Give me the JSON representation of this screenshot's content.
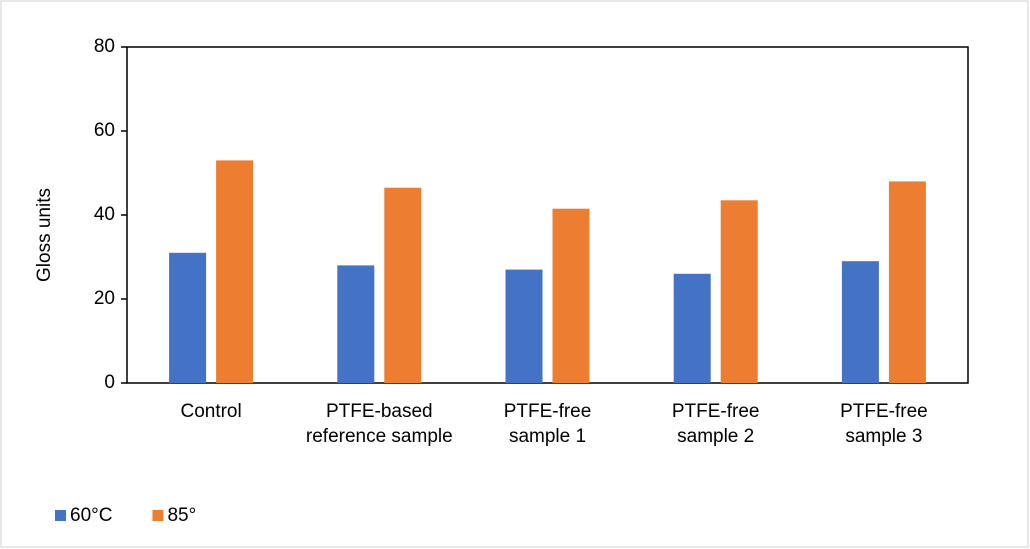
{
  "chart_data": {
    "type": "bar",
    "y_label": "Gloss units",
    "categories": [
      "Control",
      "PTFE-based reference sample",
      "PTFE-free sample 1",
      "PTFE-free sample 2",
      "PTFE-free sample 3"
    ],
    "series": [
      {
        "name": "60°C",
        "color": "#4472c4",
        "values": [
          31,
          28,
          27,
          26,
          29
        ]
      },
      {
        "name": "85°",
        "color": "#ed7d31",
        "values": [
          53,
          46.5,
          41.5,
          43.5,
          48
        ]
      }
    ],
    "ylim": [
      0,
      80
    ],
    "yticks": [
      0,
      20,
      40,
      60,
      80
    ],
    "legend": "bottom-left"
  }
}
